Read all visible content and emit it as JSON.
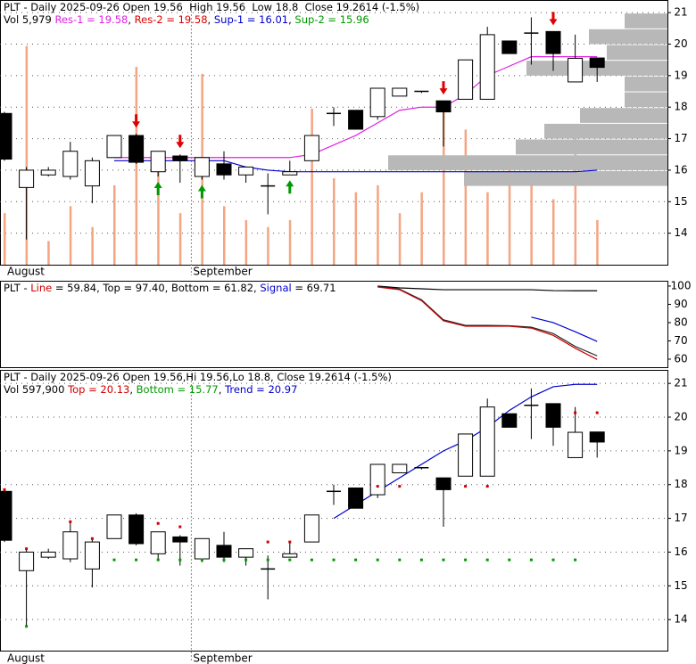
{
  "chart_data": [
    {
      "type": "candlestick",
      "header": [
        [
          {
            "text": "PLT - Daily 2025-09-26 Open 19.56  High 19.56  Low 18.8  Close 19.2614 (-1.5%)",
            "color": "#000000"
          }
        ],
        [
          {
            "text": "Vol 5,979 ",
            "color": "#000000"
          },
          {
            "text": "Res-1 = 19.58",
            "color": "#e020e0"
          },
          {
            "text": ", ",
            "color": "#000000"
          },
          {
            "text": "Res-2 = 19.58",
            "color": "#dd0000"
          },
          {
            "text": ", ",
            "color": "#000000"
          },
          {
            "text": "Sup-1 = 16.01",
            "color": "#0000cc"
          },
          {
            "text": ", ",
            "color": "#000000"
          },
          {
            "text": "Sup-2 = 15.96",
            "color": "#009900"
          }
        ]
      ],
      "open": [
        17.8,
        15.45,
        15.85,
        15.8,
        15.5,
        16.4,
        17.1,
        15.95,
        16.45,
        15.8,
        16.2,
        15.85,
        15.5,
        15.85,
        16.3,
        17.8,
        17.9,
        17.7,
        18.35,
        18.5,
        18.2,
        18.25,
        18.25,
        20.1,
        20.35,
        20.4,
        18.8,
        19.56
      ],
      "high": [
        17.85,
        16.1,
        16.1,
        16.9,
        16.4,
        17.1,
        17.15,
        16.6,
        16.5,
        16.4,
        16.6,
        16.1,
        15.9,
        16.3,
        17.1,
        18.0,
        17.9,
        18.6,
        18.6,
        18.5,
        18.2,
        19.5,
        20.55,
        20.1,
        20.85,
        20.4,
        20.3,
        19.56
      ],
      "low": [
        16.3,
        13.8,
        15.8,
        15.7,
        14.95,
        16.4,
        16.2,
        15.8,
        15.6,
        15.7,
        15.7,
        15.6,
        14.6,
        15.85,
        16.3,
        17.4,
        17.3,
        17.6,
        18.35,
        18.45,
        16.75,
        18.25,
        18.25,
        19.7,
        19.35,
        19.15,
        18.8,
        18.8
      ],
      "close": [
        16.35,
        16.0,
        16.0,
        16.6,
        16.3,
        17.1,
        16.25,
        16.6,
        16.3,
        16.4,
        15.85,
        16.1,
        15.5,
        15.95,
        17.1,
        17.8,
        17.3,
        18.6,
        18.6,
        18.5,
        17.85,
        19.5,
        20.3,
        19.7,
        20.35,
        19.7,
        19.55,
        19.2614
      ],
      "ylim": [
        13.0,
        21.4
      ],
      "yticks": [
        14,
        15,
        16,
        17,
        18,
        19,
        20,
        21
      ],
      "grid": true,
      "up_color": "#ffffff",
      "down_color": "#000000",
      "volume": {
        "values": [
          37,
          157,
          17,
          42,
          27,
          57,
          142,
          67,
          37,
          137,
          42,
          32,
          27,
          32,
          112,
          62,
          52,
          57,
          37,
          52,
          117,
          97,
          52,
          77,
          67,
          47,
          97,
          32
        ],
        "ylim": [
          0,
          190
        ],
        "color": "#f4a582"
      },
      "volume_profile": {
        "bins": [
          15.5,
          16,
          16.5,
          17,
          17.5,
          18,
          18.5,
          19,
          19.5,
          20,
          20.5,
          21
        ],
        "values": [
          228,
          313,
          170,
          138,
          98,
          48,
          48,
          158,
          68,
          88,
          48
        ],
        "xlim": [
          0,
          320
        ],
        "color": "#b8b8b8"
      },
      "series": [
        {
          "color": "#e020e0",
          "values": [
            null,
            null,
            null,
            null,
            null,
            16.4,
            16.4,
            16.4,
            16.4,
            16.4,
            16.4,
            16.4,
            16.4,
            16.4,
            16.5,
            16.8,
            17.1,
            17.5,
            17.9,
            18.0,
            18.0,
            18.4,
            19.0,
            19.3,
            19.6,
            19.6,
            19.6,
            19.6
          ]
        },
        {
          "color": "#0000cc",
          "values": [
            null,
            null,
            null,
            null,
            null,
            16.3,
            16.3,
            16.3,
            16.3,
            16.3,
            16.3,
            16.1,
            16.0,
            15.95,
            15.95,
            15.95,
            15.95,
            15.95,
            15.95,
            15.95,
            15.95,
            15.95,
            15.95,
            15.95,
            15.95,
            15.95,
            15.95,
            16.0
          ]
        }
      ],
      "sell_signals": {
        "indices": [
          6,
          8,
          20,
          25
        ],
        "color": "#e00000"
      },
      "buy_signals": {
        "indices": [
          7,
          9,
          13
        ],
        "color": "#009900"
      },
      "months": [
        {
          "label": "August",
          "start": 0
        },
        {
          "label": "September",
          "start": 9
        }
      ]
    },
    {
      "type": "line",
      "header": [
        [
          {
            "text": "PLT - ",
            "color": "#000000"
          },
          {
            "text": "Line",
            "color": "#cc0000"
          },
          {
            "text": " = 59.84, Top = 97.40, Bottom = 61.82, ",
            "color": "#000000"
          },
          {
            "text": "Signal",
            "color": "#0000cc"
          },
          {
            "text": " = 69.71",
            "color": "#000000"
          }
        ]
      ],
      "ylim": [
        55.6,
        102.9
      ],
      "yticks": [
        60,
        70,
        80,
        90,
        100
      ],
      "series": [
        {
          "color": "#000000",
          "values": [
            null,
            null,
            null,
            null,
            null,
            null,
            null,
            null,
            null,
            null,
            null,
            null,
            null,
            null,
            null,
            null,
            null,
            100,
            99,
            98.5,
            98,
            98,
            98,
            98,
            98,
            97.5,
            97.4,
            97.4
          ]
        },
        {
          "color": "#222222",
          "values": [
            null,
            null,
            null,
            null,
            null,
            null,
            null,
            null,
            null,
            null,
            null,
            null,
            null,
            null,
            null,
            null,
            null,
            99.8,
            98.3,
            92.5,
            81.5,
            78.5,
            78.5,
            78.3,
            77.5,
            74,
            67,
            61.82
          ]
        },
        {
          "color": "#cc0000",
          "values": [
            null,
            null,
            null,
            null,
            null,
            null,
            null,
            null,
            null,
            null,
            null,
            null,
            null,
            null,
            null,
            null,
            null,
            99.5,
            98,
            92,
            81,
            78,
            78,
            78,
            77,
            73,
            66,
            59.84
          ]
        },
        {
          "color": "#0000cc",
          "values": [
            null,
            null,
            null,
            null,
            null,
            null,
            null,
            null,
            null,
            null,
            null,
            null,
            null,
            null,
            null,
            null,
            null,
            null,
            null,
            null,
            null,
            null,
            null,
            null,
            83,
            80,
            75,
            69.71
          ]
        }
      ]
    },
    {
      "type": "candlestick",
      "header": [
        [
          {
            "text": "PLT - Daily 2025-09-26 Open 19.56,Hi 19.56,Lo 18.8, Close 19.2614 (-1.5%)",
            "color": "#000000"
          }
        ],
        [
          {
            "text": "Vol 597,900 ",
            "color": "#000000"
          },
          {
            "text": "Top = 20.13",
            "color": "#cc0000"
          },
          {
            "text": ", ",
            "color": "#000000"
          },
          {
            "text": "Bottom = 15.77",
            "color": "#009900"
          },
          {
            "text": ", ",
            "color": "#000000"
          },
          {
            "text": "Trend = 20.97",
            "color": "#0000cc"
          }
        ]
      ],
      "open": [
        17.8,
        15.45,
        15.85,
        15.8,
        15.5,
        16.4,
        17.1,
        15.95,
        16.45,
        15.8,
        16.2,
        15.85,
        15.5,
        15.85,
        16.3,
        17.8,
        17.9,
        17.7,
        18.35,
        18.5,
        18.2,
        18.25,
        18.25,
        20.1,
        20.35,
        20.4,
        18.8,
        19.56
      ],
      "high": [
        17.85,
        16.1,
        16.1,
        16.9,
        16.4,
        17.1,
        17.15,
        16.6,
        16.5,
        16.4,
        16.6,
        16.1,
        15.9,
        16.3,
        17.1,
        18.0,
        17.9,
        18.6,
        18.6,
        18.5,
        18.2,
        19.5,
        20.55,
        20.1,
        20.85,
        20.4,
        20.3,
        19.56
      ],
      "low": [
        16.3,
        13.8,
        15.8,
        15.7,
        14.95,
        16.4,
        16.2,
        15.8,
        15.6,
        15.7,
        15.7,
        15.6,
        14.6,
        15.85,
        16.3,
        17.4,
        17.3,
        17.6,
        18.35,
        18.45,
        16.75,
        18.25,
        18.25,
        19.7,
        19.35,
        19.15,
        18.8,
        18.8
      ],
      "close": [
        16.35,
        16.0,
        16.0,
        16.6,
        16.3,
        17.1,
        16.25,
        16.6,
        16.3,
        16.4,
        15.85,
        16.1,
        15.5,
        15.95,
        17.1,
        17.8,
        17.3,
        18.6,
        18.6,
        18.5,
        17.85,
        19.5,
        20.3,
        19.7,
        20.35,
        19.7,
        19.55,
        19.2614
      ],
      "ylim": [
        13.08,
        21.4
      ],
      "yticks": [
        14,
        15,
        16,
        17,
        18,
        19,
        20,
        21
      ],
      "grid": true,
      "up_color": "#ffffff",
      "down_color": "#000000",
      "series": [
        {
          "color": "#0000cc",
          "values": [
            null,
            null,
            null,
            null,
            null,
            null,
            null,
            null,
            null,
            null,
            null,
            null,
            null,
            null,
            null,
            17.0,
            17.4,
            17.8,
            18.2,
            18.6,
            19.0,
            19.3,
            19.7,
            20.2,
            20.6,
            20.9,
            20.97,
            20.97
          ]
        }
      ],
      "dots": [
        {
          "color": "#cc0000",
          "values": [
            17.85,
            16.1,
            null,
            16.9,
            16.4,
            null,
            null,
            16.85,
            16.75,
            null,
            null,
            null,
            16.3,
            16.3,
            null,
            null,
            null,
            17.95,
            17.95,
            null,
            null,
            17.95,
            17.95,
            null,
            null,
            null,
            20.13,
            20.13
          ]
        },
        {
          "color": "#009900",
          "values": [
            null,
            13.8,
            null,
            null,
            null,
            15.77,
            15.77,
            15.77,
            15.77,
            15.77,
            15.77,
            15.77,
            15.77,
            15.77,
            15.77,
            15.77,
            15.77,
            15.77,
            15.77,
            15.77,
            15.77,
            15.77,
            15.77,
            15.77,
            15.77,
            15.77,
            15.77,
            null
          ]
        }
      ],
      "months": [
        {
          "label": "August",
          "start": 0
        },
        {
          "label": "September",
          "start": 9
        }
      ]
    }
  ]
}
